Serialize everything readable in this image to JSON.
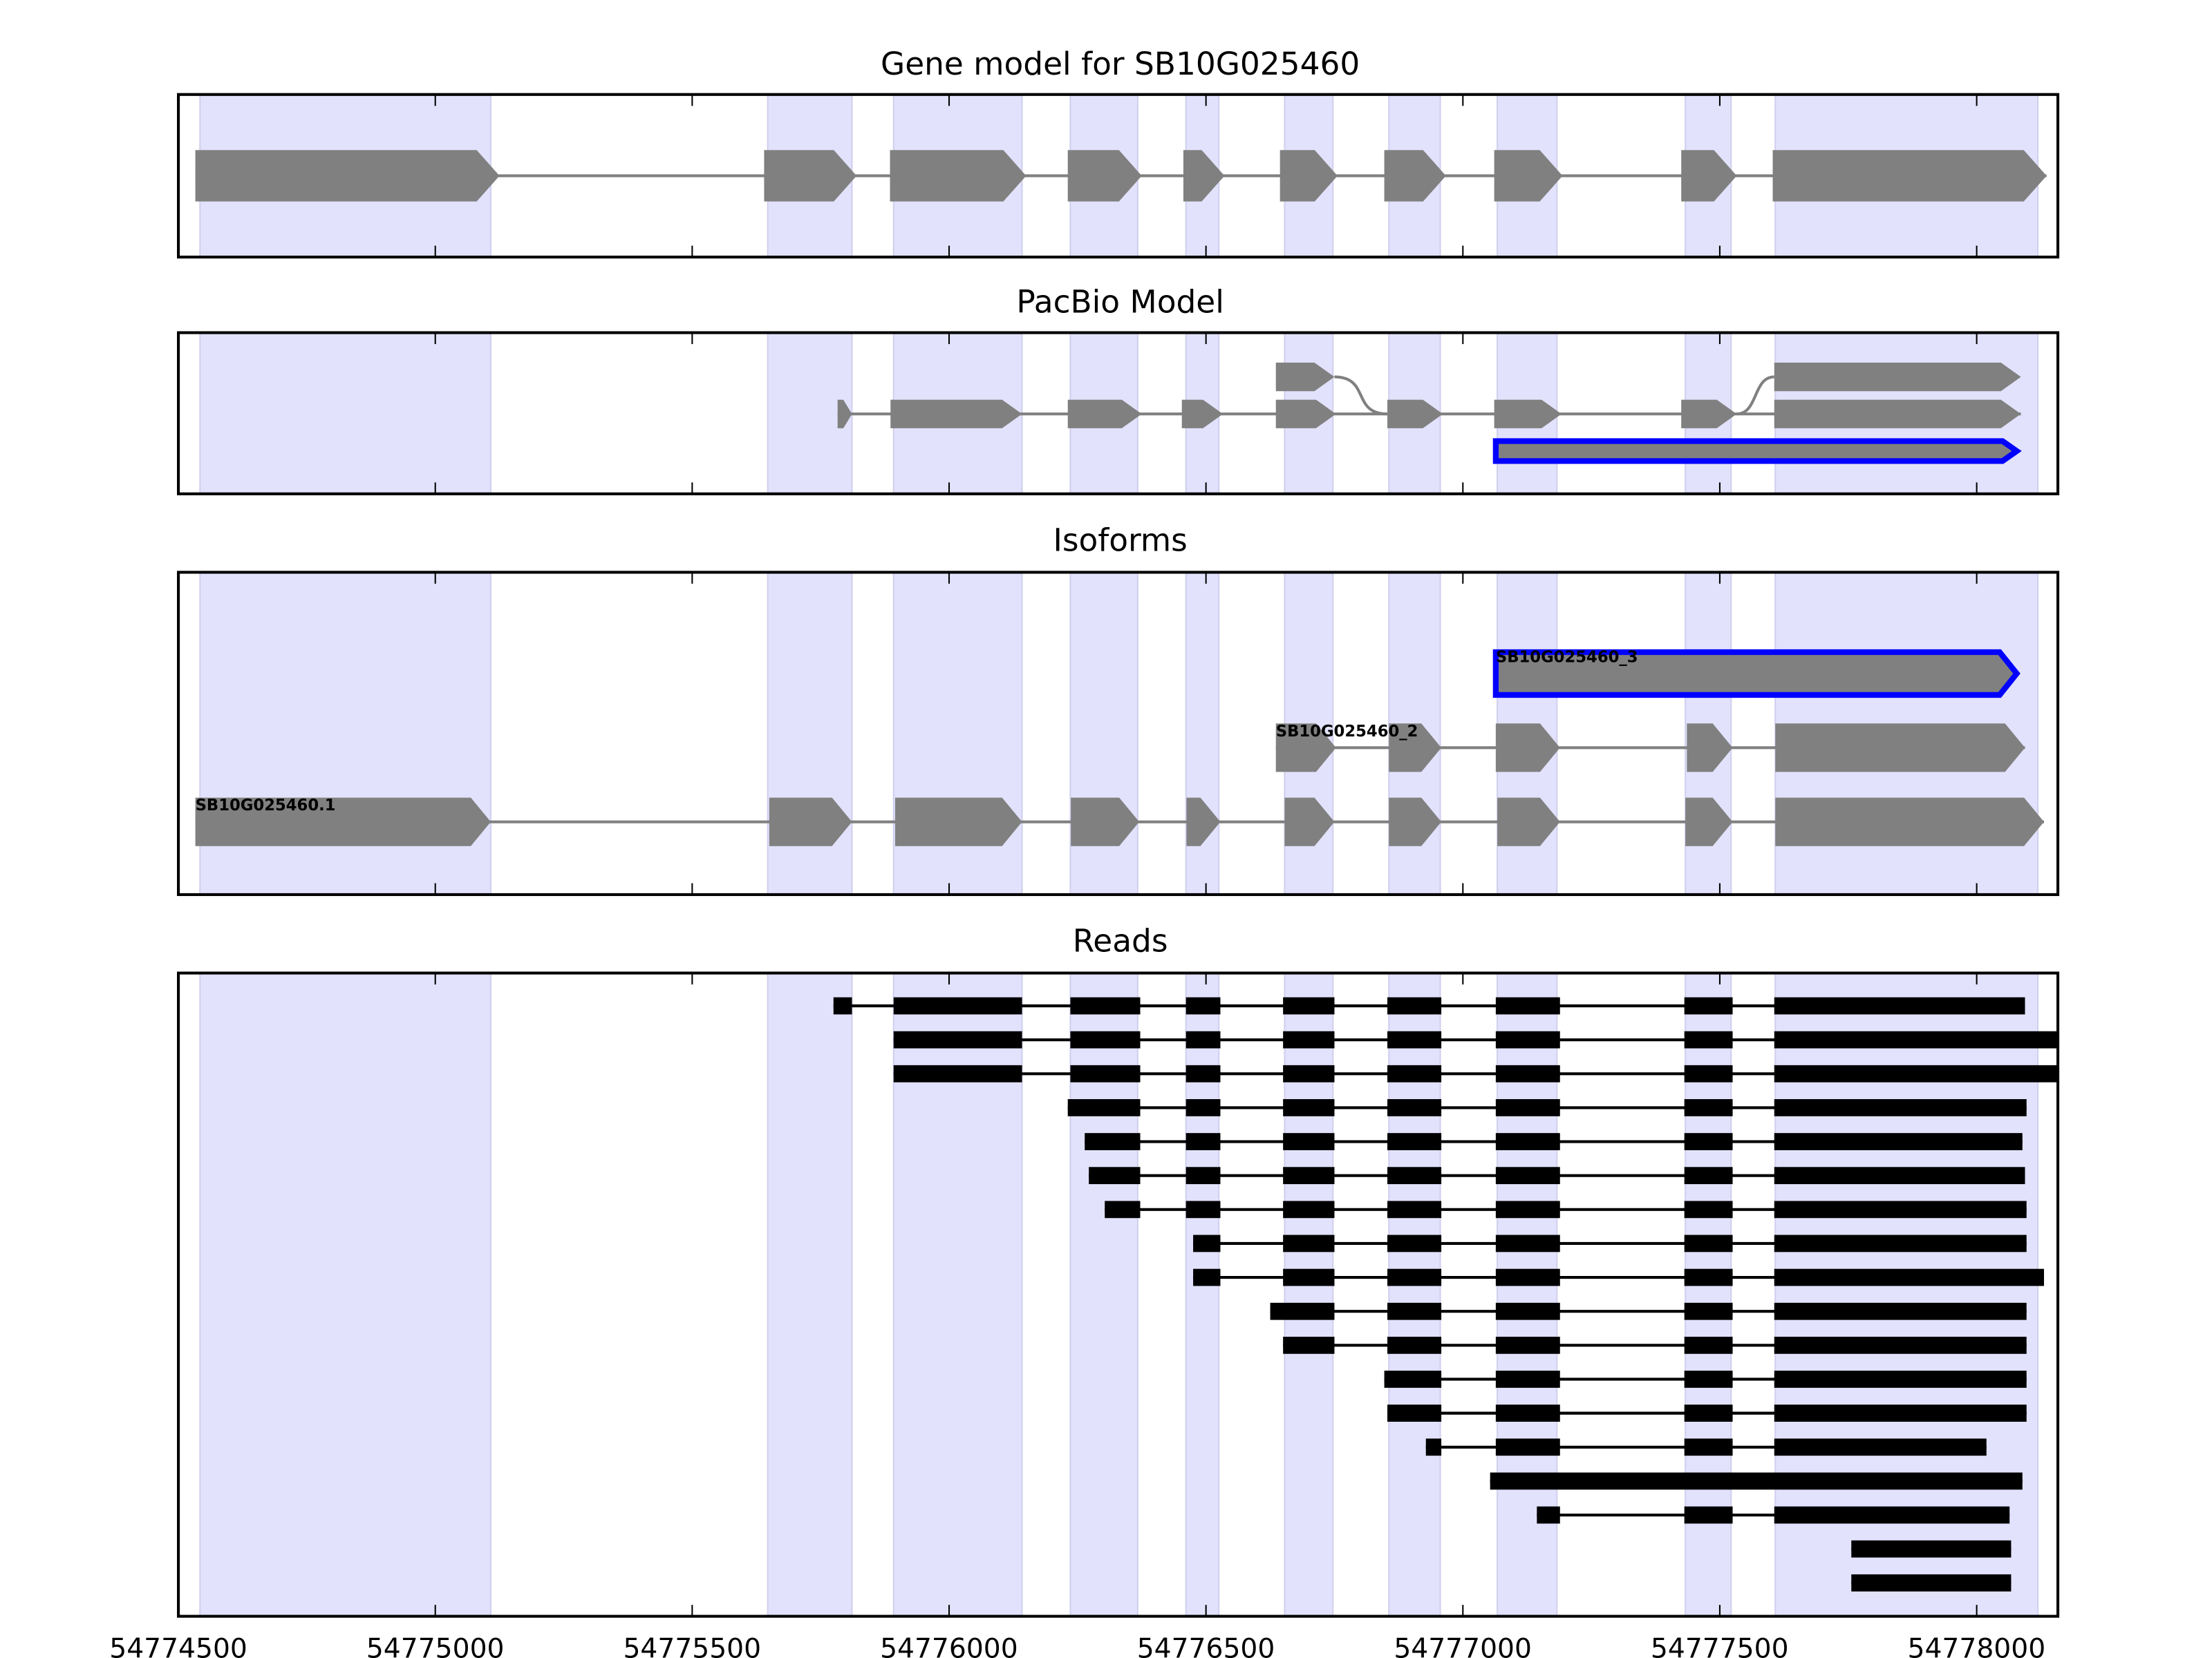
{
  "chart_data": {
    "type": "gene-track",
    "xlim": [
      54774500,
      54778158
    ],
    "x_ticks": [
      "54774500",
      "54775000",
      "54775500",
      "54776000",
      "54776500",
      "54777000",
      "54777500",
      "54778000"
    ],
    "x_tick_values": [
      54774500,
      54775000,
      54775500,
      54776000,
      54776500,
      54777000,
      54777500,
      54778000
    ],
    "colors": {
      "band": "#e2e2fc",
      "band_edge": "#d0d0ee",
      "exon": "#808080",
      "highlight": "#0000ff",
      "read": "#000000"
    },
    "bands": [
      [
        54774542,
        54775108
      ],
      [
        54775647,
        54775811
      ],
      [
        54775892,
        54776142
      ],
      [
        54776236,
        54776367
      ],
      [
        54776461,
        54776525
      ],
      [
        54776653,
        54776747
      ],
      [
        54776856,
        54776956
      ],
      [
        54777067,
        54777183
      ],
      [
        54777433,
        54777522
      ],
      [
        54777608,
        54778119
      ]
    ],
    "panels": [
      {
        "title": "Gene model for SB10G025460",
        "gene_exons": [
          [
            54774533,
            54775125
          ],
          [
            54775640,
            54775820
          ],
          [
            54775885,
            54776150
          ],
          [
            54776231,
            54776375
          ],
          [
            54776456,
            54776536
          ],
          [
            54776644,
            54776756
          ],
          [
            54776847,
            54776967
          ],
          [
            54777061,
            54777194
          ],
          [
            54777425,
            54777533
          ],
          [
            54777603,
            54778136
          ]
        ]
      },
      {
        "title": "PacBio Model",
        "alt_row": [
          [
            54776636,
            54776750
          ],
          [
            54777606,
            54778086
          ]
        ],
        "main_row": [
          [
            54775783,
            54775811
          ],
          [
            54775886,
            54776142
          ],
          [
            54776231,
            54776375
          ],
          [
            54776453,
            54776533
          ],
          [
            54776636,
            54776753
          ],
          [
            54776853,
            54776961
          ],
          [
            54777061,
            54777192
          ],
          [
            54777425,
            54777533
          ],
          [
            54777606,
            54778086
          ]
        ],
        "highlight_row": [
          [
            54777064,
            54778078
          ]
        ]
      },
      {
        "title": "Isoforms",
        "isoforms": [
          {
            "name": "SB10G025460.1",
            "exons": [
              [
                54774533,
                54775108
              ],
              [
                54775650,
                54775811
              ],
              [
                54775895,
                54776142
              ],
              [
                54776237,
                54776370
              ],
              [
                54776462,
                54776528
              ],
              [
                54776653,
                54776750
              ],
              [
                54776856,
                54776958
              ],
              [
                54777067,
                54777189
              ],
              [
                54777433,
                54777525
              ],
              [
                54777608,
                54778131
              ]
            ],
            "highlight": false
          },
          {
            "name": "SB10G025460_2",
            "exons": [
              [
                54776636,
                54776753
              ],
              [
                54776856,
                54776958
              ],
              [
                54777064,
                54777189
              ],
              [
                54777436,
                54777525
              ],
              [
                54777608,
                54778094
              ]
            ],
            "highlight": false
          },
          {
            "name": "SB10G025460_3",
            "exons": [
              [
                54777064,
                54778078
              ]
            ],
            "highlight": true
          }
        ]
      },
      {
        "title": "Reads",
        "reads": [
          [
            [
              54775775,
              54775811
            ],
            [
              54775892,
              54776142
            ],
            [
              54776236,
              54776372
            ],
            [
              54776461,
              54776528
            ],
            [
              54776650,
              54776750
            ],
            [
              54776853,
              54776958
            ],
            [
              54777064,
              54777189
            ],
            [
              54777431,
              54777525
            ],
            [
              54777606,
              54778094
            ]
          ],
          [
            [
              54775892,
              54776142
            ],
            [
              54776236,
              54776372
            ],
            [
              54776461,
              54776528
            ],
            [
              54776650,
              54776750
            ],
            [
              54776853,
              54776958
            ],
            [
              54777064,
              54777189
            ],
            [
              54777431,
              54777525
            ],
            [
              54777606,
              54778158
            ]
          ],
          [
            [
              54775892,
              54776142
            ],
            [
              54776236,
              54776372
            ],
            [
              54776461,
              54776528
            ],
            [
              54776650,
              54776750
            ],
            [
              54776853,
              54776958
            ],
            [
              54777064,
              54777189
            ],
            [
              54777431,
              54777525
            ],
            [
              54777606,
              54778158
            ]
          ],
          [
            [
              54776231,
              54776372
            ],
            [
              54776461,
              54776528
            ],
            [
              54776650,
              54776750
            ],
            [
              54776853,
              54776958
            ],
            [
              54777064,
              54777189
            ],
            [
              54777431,
              54777525
            ],
            [
              54777606,
              54778097
            ]
          ],
          [
            [
              54776264,
              54776372
            ],
            [
              54776461,
              54776528
            ],
            [
              54776650,
              54776750
            ],
            [
              54776853,
              54776958
            ],
            [
              54777064,
              54777189
            ],
            [
              54777431,
              54777525
            ],
            [
              54777606,
              54778089
            ]
          ],
          [
            [
              54776272,
              54776372
            ],
            [
              54776461,
              54776528
            ],
            [
              54776650,
              54776750
            ],
            [
              54776853,
              54776958
            ],
            [
              54777064,
              54777189
            ],
            [
              54777431,
              54777525
            ],
            [
              54777606,
              54778094
            ]
          ],
          [
            [
              54776303,
              54776372
            ],
            [
              54776461,
              54776528
            ],
            [
              54776650,
              54776750
            ],
            [
              54776853,
              54776958
            ],
            [
              54777064,
              54777189
            ],
            [
              54777431,
              54777525
            ],
            [
              54777606,
              54778097
            ]
          ],
          [
            [
              54776475,
              54776528
            ],
            [
              54776650,
              54776750
            ],
            [
              54776853,
              54776958
            ],
            [
              54777064,
              54777189
            ],
            [
              54777431,
              54777525
            ],
            [
              54777606,
              54778097
            ]
          ],
          [
            [
              54776475,
              54776528
            ],
            [
              54776650,
              54776750
            ],
            [
              54776853,
              54776958
            ],
            [
              54777064,
              54777189
            ],
            [
              54777431,
              54777525
            ],
            [
              54777606,
              54778131
            ]
          ],
          [
            [
              54776625,
              54776750
            ],
            [
              54776853,
              54776958
            ],
            [
              54777064,
              54777189
            ],
            [
              54777431,
              54777525
            ],
            [
              54777606,
              54778097
            ]
          ],
          [
            [
              54776650,
              54776750
            ],
            [
              54776853,
              54776958
            ],
            [
              54777064,
              54777189
            ],
            [
              54777431,
              54777525
            ],
            [
              54777606,
              54778097
            ]
          ],
          [
            [
              54776847,
              54776958
            ],
            [
              54777064,
              54777189
            ],
            [
              54777431,
              54777525
            ],
            [
              54777606,
              54778097
            ]
          ],
          [
            [
              54776853,
              54776958
            ],
            [
              54777064,
              54777189
            ],
            [
              54777431,
              54777525
            ],
            [
              54777606,
              54778097
            ]
          ],
          [
            [
              54776928,
              54776958
            ],
            [
              54777064,
              54777189
            ],
            [
              54777431,
              54777525
            ],
            [
              54777606,
              54778019
            ]
          ],
          [
            [
              54777053,
              54778089
            ]
          ],
          [
            [
              54777144,
              54777189
            ],
            [
              54777431,
              54777525
            ],
            [
              54777606,
              54778064
            ]
          ],
          [
            [
              54777756,
              54778067
            ]
          ],
          [
            [
              54777756,
              54778067
            ]
          ]
        ]
      }
    ]
  }
}
